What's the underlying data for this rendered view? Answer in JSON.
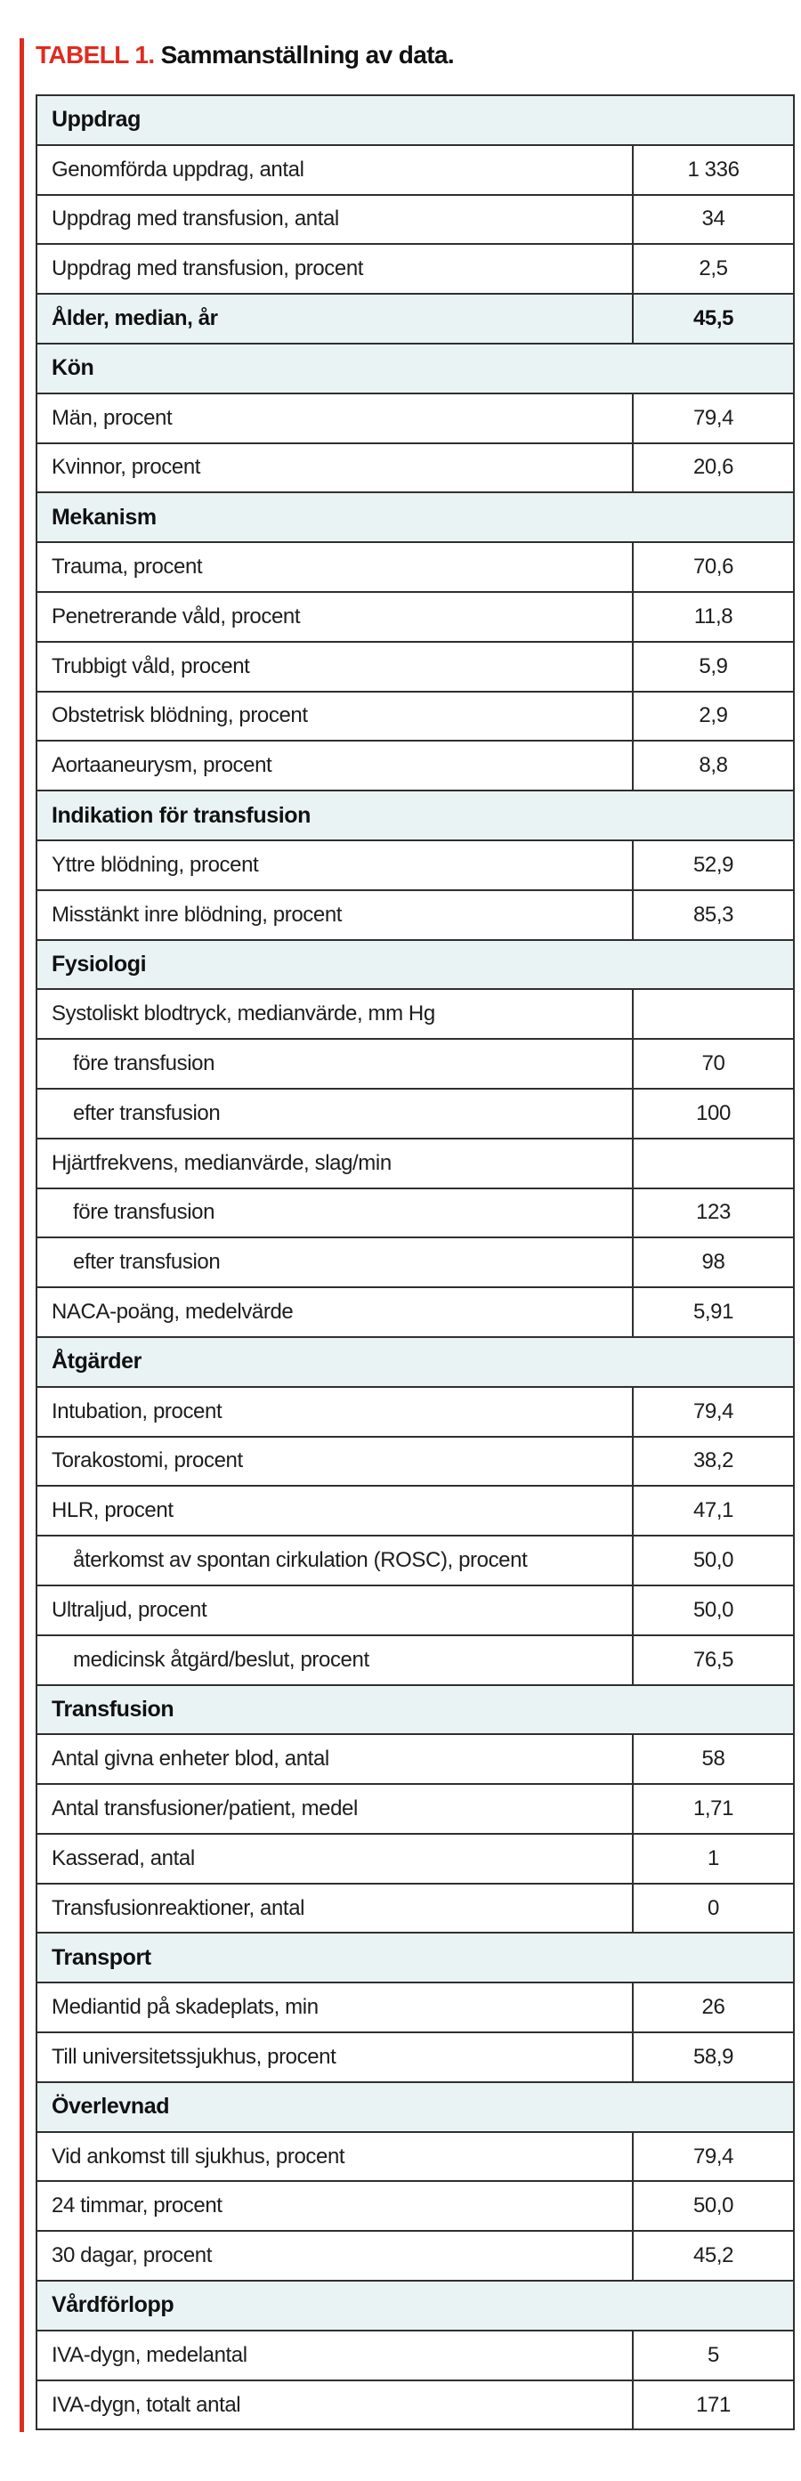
{
  "title": {
    "red": "TABELL 1.",
    "black": "Sammanställning av data."
  },
  "colors": {
    "accent_red": "#e02b1f",
    "section_bg": "#eaf3f4",
    "border": "#2f2f2f"
  },
  "table": {
    "rows": [
      {
        "type": "section",
        "label": "Uppdrag"
      },
      {
        "type": "data",
        "label": "Genomförda uppdrag, antal",
        "value": "1 336"
      },
      {
        "type": "data",
        "label": "Uppdrag med transfusion, antal",
        "value": "34"
      },
      {
        "type": "data",
        "label": "Uppdrag med transfusion, procent",
        "value": "2,5"
      },
      {
        "type": "highlight",
        "label": "Ålder, median, år",
        "value": "45,5"
      },
      {
        "type": "section",
        "label": "Kön"
      },
      {
        "type": "data",
        "label": "Män, procent",
        "value": "79,4"
      },
      {
        "type": "data",
        "label": "Kvinnor, procent",
        "value": "20,6"
      },
      {
        "type": "section",
        "label": "Mekanism"
      },
      {
        "type": "data",
        "label": "Trauma, procent",
        "value": "70,6"
      },
      {
        "type": "data",
        "label": "Penetrerande våld, procent",
        "value": "11,8"
      },
      {
        "type": "data",
        "label": "Trubbigt våld, procent",
        "value": "5,9"
      },
      {
        "type": "data",
        "label": "Obstetrisk blödning, procent",
        "value": "2,9"
      },
      {
        "type": "data",
        "label": "Aortaaneurysm, procent",
        "value": "8,8"
      },
      {
        "type": "section",
        "label": "Indikation för transfusion"
      },
      {
        "type": "data",
        "label": "Yttre blödning, procent",
        "value": "52,9"
      },
      {
        "type": "data",
        "label": "Misstänkt inre blödning, procent",
        "value": "85,3"
      },
      {
        "type": "section",
        "label": "Fysiologi"
      },
      {
        "type": "data",
        "label": "Systoliskt blodtryck, medianvärde, mm Hg",
        "value": ""
      },
      {
        "type": "data",
        "label": "före transfusion",
        "value": "70",
        "indent": true
      },
      {
        "type": "data",
        "label": "efter transfusion",
        "value": "100",
        "indent": true
      },
      {
        "type": "data",
        "label": "Hjärtfrekvens, medianvärde, slag/min",
        "value": ""
      },
      {
        "type": "data",
        "label": "före transfusion",
        "value": "123",
        "indent": true
      },
      {
        "type": "data",
        "label": "efter transfusion",
        "value": "98",
        "indent": true
      },
      {
        "type": "data",
        "label": "NACA-poäng, medelvärde",
        "value": "5,91"
      },
      {
        "type": "section",
        "label": "Åtgärder"
      },
      {
        "type": "data",
        "label": "Intubation, procent",
        "value": "79,4"
      },
      {
        "type": "data",
        "label": "Torakostomi, procent",
        "value": "38,2"
      },
      {
        "type": "data",
        "label": "HLR, procent",
        "value": "47,1"
      },
      {
        "type": "data",
        "label": "återkomst av spontan cirkulation (ROSC), procent",
        "value": "50,0",
        "indent": true
      },
      {
        "type": "data",
        "label": "Ultraljud, procent",
        "value": "50,0"
      },
      {
        "type": "data",
        "label": "medicinsk åtgärd/beslut, procent",
        "value": "76,5",
        "indent": true
      },
      {
        "type": "section",
        "label": "Transfusion"
      },
      {
        "type": "data",
        "label": "Antal givna enheter blod, antal",
        "value": "58"
      },
      {
        "type": "data",
        "label": "Antal transfusioner/patient, medel",
        "value": "1,71"
      },
      {
        "type": "data",
        "label": "Kasserad, antal",
        "value": "1"
      },
      {
        "type": "data",
        "label": "Transfusionreaktioner, antal",
        "value": "0"
      },
      {
        "type": "section",
        "label": "Transport"
      },
      {
        "type": "data",
        "label": "Mediantid på skadeplats, min",
        "value": "26"
      },
      {
        "type": "data",
        "label": "Till universitetssjukhus, procent",
        "value": "58,9"
      },
      {
        "type": "section",
        "label": "Överlevnad"
      },
      {
        "type": "data",
        "label": "Vid ankomst till sjukhus, procent",
        "value": "79,4"
      },
      {
        "type": "data",
        "label": "24 timmar, procent",
        "value": "50,0"
      },
      {
        "type": "data",
        "label": "30 dagar, procent",
        "value": "45,2"
      },
      {
        "type": "section",
        "label": "Vårdförlopp"
      },
      {
        "type": "data",
        "label": "IVA-dygn, medelantal",
        "value": "5"
      },
      {
        "type": "data",
        "label": "IVA-dygn, totalt antal",
        "value": "171"
      }
    ]
  }
}
